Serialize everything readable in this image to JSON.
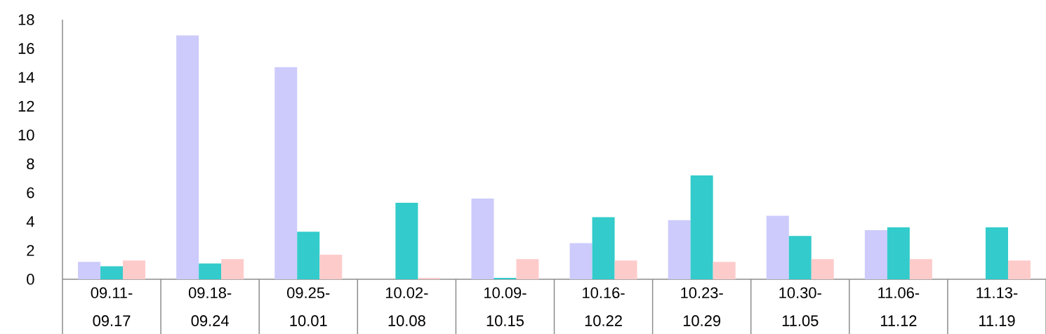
{
  "chart_data": {
    "type": "bar",
    "categories": [
      "09.11-09.17",
      "09.18-09.24",
      "09.25-10.01",
      "10.02-10.08",
      "10.09-10.15",
      "10.16-10.22",
      "10.23-10.29",
      "10.30-11.05",
      "11.06-11.12",
      "11.13-11.19"
    ],
    "series": [
      {
        "color": "#cccbfb",
        "values": [
          1.2,
          16.9,
          14.7,
          null,
          5.6,
          2.5,
          4.1,
          4.4,
          3.4,
          null
        ]
      },
      {
        "color": "#33cbcb",
        "values": [
          0.9,
          1.1,
          3.3,
          5.3,
          0.1,
          4.3,
          7.2,
          3.0,
          3.6,
          3.6
        ]
      },
      {
        "color": "#fecbcb",
        "values": [
          1.3,
          1.4,
          1.7,
          0.1,
          1.4,
          1.3,
          1.2,
          1.4,
          1.4,
          1.3
        ]
      }
    ],
    "ylim": [
      0,
      18
    ],
    "yticks": [
      0,
      2,
      4,
      6,
      8,
      10,
      12,
      14,
      16,
      18
    ]
  }
}
